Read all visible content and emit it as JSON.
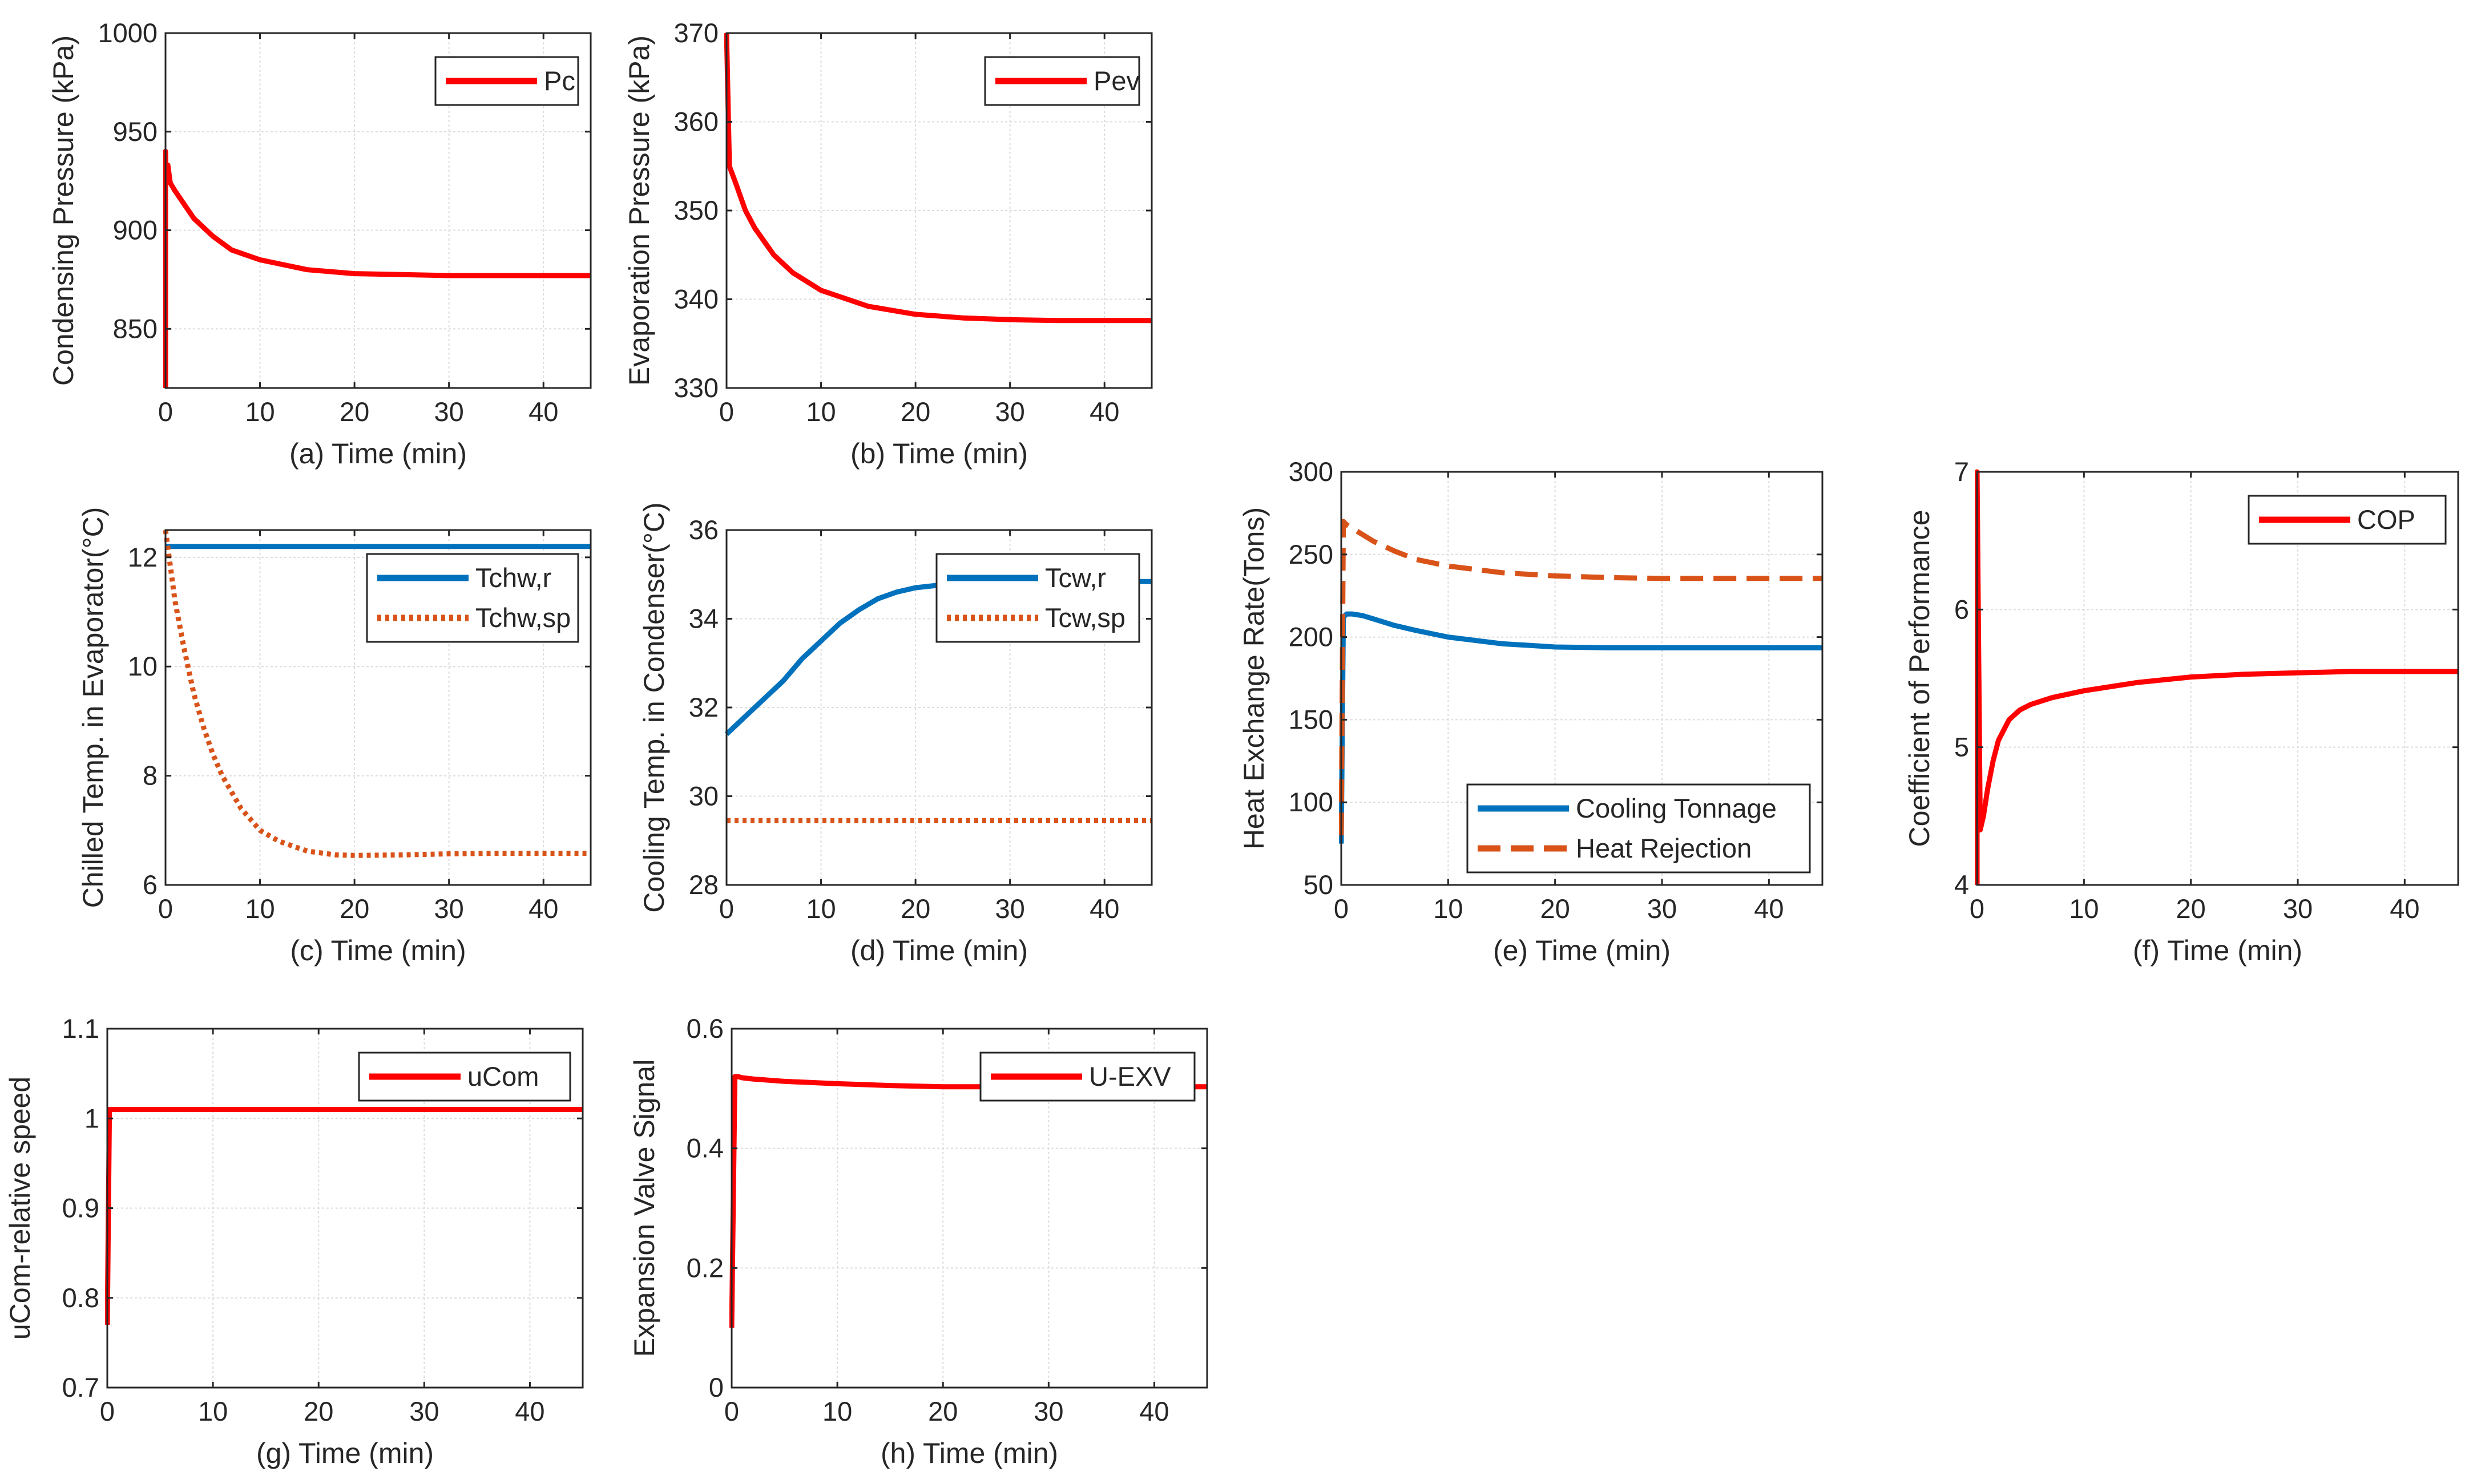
{
  "colors": {
    "red": "#ff0000",
    "blue": "#0072bd",
    "orange": "#d95319",
    "axis": "#262626",
    "grid": "#dcdcdc"
  },
  "chart_data": [
    {
      "id": "a",
      "type": "line",
      "xlabel": "(a) Time (min)",
      "ylabel": "Condensing Pressure (kPa)",
      "xlim": [
        0,
        45
      ],
      "ylim": [
        820,
        1000
      ],
      "xticks": [
        0,
        10,
        20,
        30,
        40
      ],
      "yticks": [
        850,
        900,
        950,
        1000
      ],
      "legend": "top-right",
      "grid": true,
      "series": [
        {
          "name": "Pc",
          "color": "#ff0000",
          "style": "solid",
          "x": [
            0,
            0,
            0.05,
            0.25,
            0.5,
            1,
            2,
            3,
            5,
            7,
            10,
            15,
            20,
            25,
            30,
            35,
            40,
            45
          ],
          "y": [
            820,
            940,
            925,
            933,
            924,
            920,
            913,
            906,
            897,
            890,
            885,
            880,
            878,
            877.5,
            877,
            877,
            877,
            877
          ]
        }
      ]
    },
    {
      "id": "b",
      "type": "line",
      "xlabel": "(b) Time (min)",
      "ylabel": "Evaporation Pressure (kPa)",
      "xlim": [
        0,
        45
      ],
      "ylim": [
        330,
        370
      ],
      "xticks": [
        0,
        10,
        20,
        30,
        40
      ],
      "yticks": [
        330,
        340,
        350,
        360,
        370
      ],
      "legend": "top-right",
      "grid": true,
      "series": [
        {
          "name": "Pev",
          "color": "#ff0000",
          "style": "solid",
          "x": [
            0,
            0.3,
            1,
            2,
            3,
            5,
            7,
            10,
            15,
            20,
            25,
            30,
            35,
            40,
            45
          ],
          "y": [
            370,
            355,
            353,
            350,
            348,
            345,
            343,
            341,
            339.2,
            338.3,
            337.9,
            337.7,
            337.6,
            337.6,
            337.6
          ]
        }
      ]
    },
    {
      "id": "c",
      "type": "line",
      "xlabel": "(c) Time (min)",
      "ylabel": "Chilled Temp. in Evaporator(°C)",
      "xlim": [
        0,
        45
      ],
      "ylim": [
        6,
        12.5
      ],
      "xticks": [
        0,
        10,
        20,
        30,
        40
      ],
      "yticks": [
        6,
        8,
        10,
        12
      ],
      "legend": "top-right",
      "grid": true,
      "series": [
        {
          "name": "Tchw,r",
          "color": "#0072bd",
          "style": "solid",
          "x": [
            0,
            45
          ],
          "y": [
            12.2,
            12.2
          ]
        },
        {
          "name": "Tchw,sp",
          "color": "#d95319",
          "style": "dotted",
          "x": [
            0,
            1,
            2,
            3,
            4,
            5,
            6,
            8,
            10,
            12,
            15,
            18,
            20,
            25,
            30,
            35,
            40,
            45
          ],
          "y": [
            12.5,
            11.2,
            10.3,
            9.5,
            8.9,
            8.4,
            8.0,
            7.4,
            7.0,
            6.8,
            6.62,
            6.55,
            6.54,
            6.55,
            6.57,
            6.58,
            6.58,
            6.58
          ]
        }
      ]
    },
    {
      "id": "d",
      "type": "line",
      "xlabel": "(d) Time (min)",
      "ylabel": "Cooling Temp. in Condenser(°C)",
      "xlim": [
        0,
        45
      ],
      "ylim": [
        28,
        36
      ],
      "xticks": [
        0,
        10,
        20,
        30,
        40
      ],
      "yticks": [
        28,
        30,
        32,
        34,
        36
      ],
      "legend": "top-right",
      "grid": true,
      "series": [
        {
          "name": "Tcw,r",
          "color": "#0072bd",
          "style": "solid",
          "x": [
            0,
            2,
            4,
            6,
            8,
            10,
            12,
            14,
            16,
            18,
            20,
            23,
            26,
            30,
            35,
            40,
            45
          ],
          "y": [
            31.4,
            31.8,
            32.2,
            32.6,
            33.1,
            33.5,
            33.9,
            34.2,
            34.45,
            34.6,
            34.7,
            34.77,
            34.8,
            34.82,
            34.83,
            34.84,
            34.84
          ]
        },
        {
          "name": "Tcw,sp",
          "color": "#d95319",
          "style": "dotted",
          "x": [
            0,
            45
          ],
          "y": [
            29.45,
            29.45
          ]
        }
      ]
    },
    {
      "id": "e",
      "type": "line",
      "xlabel": "(e) Time (min)",
      "ylabel": "Heat Exchange Rate(Tons)",
      "xlim": [
        0,
        45
      ],
      "ylim": [
        50,
        300
      ],
      "xticks": [
        0,
        10,
        20,
        30,
        40
      ],
      "yticks": [
        50,
        100,
        150,
        200,
        250,
        300
      ],
      "legend": "bottom-right",
      "grid": true,
      "series": [
        {
          "name": "Cooling Tonnage",
          "color": "#0072bd",
          "style": "solid",
          "x": [
            0,
            0.2,
            0.5,
            1,
            2,
            3,
            5,
            7,
            10,
            15,
            20,
            25,
            30,
            35,
            40,
            45
          ],
          "y": [
            75,
            212,
            214,
            214,
            213,
            211,
            207,
            204,
            200,
            196,
            194,
            193.5,
            193.5,
            193.5,
            193.5,
            193.5
          ]
        },
        {
          "name": "Heat Rejection",
          "color": "#d95319",
          "style": "dashed",
          "x": [
            0,
            0.2,
            0.5,
            1,
            2,
            3,
            5,
            7,
            10,
            15,
            20,
            25,
            30,
            35,
            40,
            45
          ],
          "y": [
            80,
            270,
            268,
            266,
            262,
            258,
            252,
            247,
            243,
            239,
            237,
            236,
            235.5,
            235.5,
            235.5,
            235.5
          ]
        }
      ]
    },
    {
      "id": "f",
      "type": "line",
      "xlabel": "(f) Time (min)",
      "ylabel": "Coefficient of Performance",
      "xlim": [
        0,
        45
      ],
      "ylim": [
        4,
        7
      ],
      "xticks": [
        0,
        10,
        20,
        30,
        40
      ],
      "yticks": [
        4,
        5,
        6,
        7
      ],
      "legend": "top-right",
      "grid": true,
      "series": [
        {
          "name": "COP",
          "color": "#ff0000",
          "style": "solid",
          "x": [
            0,
            0,
            0.3,
            0.6,
            1,
            1.5,
            2,
            3,
            4,
            5,
            7,
            10,
            15,
            20,
            25,
            30,
            35,
            40,
            45
          ],
          "y": [
            4,
            7,
            4.4,
            4.5,
            4.7,
            4.9,
            5.05,
            5.2,
            5.27,
            5.31,
            5.36,
            5.41,
            5.47,
            5.51,
            5.53,
            5.54,
            5.55,
            5.55,
            5.55
          ]
        }
      ]
    },
    {
      "id": "g",
      "type": "line",
      "xlabel": "(g) Time (min)",
      "ylabel": "uCom-relative speed",
      "xlim": [
        0,
        45
      ],
      "ylim": [
        0.7,
        1.1
      ],
      "xticks": [
        0,
        10,
        20,
        30,
        40
      ],
      "yticks": [
        0.7,
        0.8,
        0.9,
        1,
        1.1
      ],
      "legend": "top-right",
      "grid": true,
      "series": [
        {
          "name": "uCom",
          "color": "#ff0000",
          "style": "solid",
          "x": [
            0,
            0.2,
            0.4,
            45
          ],
          "y": [
            0.77,
            1.01,
            1.01,
            1.01
          ]
        }
      ]
    },
    {
      "id": "h",
      "type": "line",
      "xlabel": "(h) Time (min)",
      "ylabel": "Expansion Valve Signal",
      "xlim": [
        0,
        45
      ],
      "ylim": [
        0,
        0.6
      ],
      "xticks": [
        0,
        10,
        20,
        30,
        40
      ],
      "yticks": [
        0,
        0.2,
        0.4,
        0.6
      ],
      "legend": "top-right",
      "grid": true,
      "series": [
        {
          "name": "U-EXV",
          "color": "#ff0000",
          "style": "solid",
          "x": [
            0,
            0.3,
            0.6,
            1,
            2,
            5,
            10,
            15,
            20,
            25,
            30,
            35,
            40,
            45
          ],
          "y": [
            0.1,
            0.52,
            0.52,
            0.518,
            0.516,
            0.512,
            0.508,
            0.505,
            0.503,
            0.503,
            0.503,
            0.503,
            0.503,
            0.503
          ]
        }
      ]
    }
  ]
}
